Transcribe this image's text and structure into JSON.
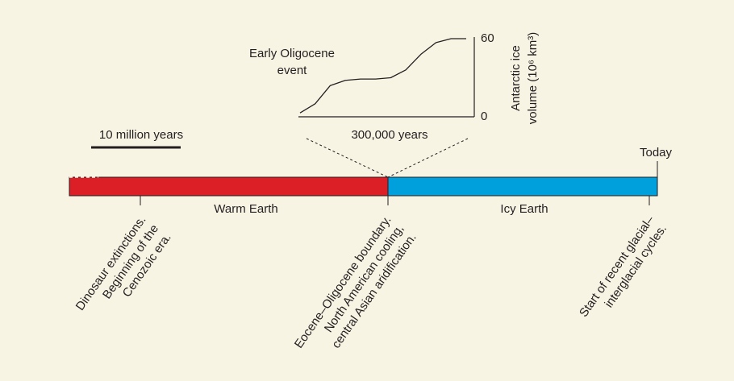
{
  "chart_data": {
    "type": "line",
    "annotation": [
      "Early Oligocene",
      "event"
    ],
    "xlabel": "300,000 years",
    "ylabel": [
      "Antarctic ice",
      "volume (10⁶ km³)"
    ],
    "categories": [
      null,
      null,
      null,
      null,
      null,
      null,
      null,
      null,
      null,
      null,
      null,
      null
    ],
    "values": [
      3,
      10,
      24,
      28,
      29,
      29,
      30,
      36,
      48,
      57,
      60,
      60
    ],
    "ylim": [
      0,
      60
    ],
    "yticks": [
      0,
      60
    ],
    "color": "#231f20"
  },
  "scale_bar": "10 million years",
  "timeline": {
    "end_label": "Today",
    "segments": [
      {
        "label": "Warm Earth",
        "color": "#dc1e26"
      },
      {
        "label": "Icy Earth",
        "color": "#00a0dc"
      }
    ],
    "events": [
      {
        "lines": [
          "Dinosaur extinctions.",
          "Beginning of the",
          "Cenozoic era."
        ]
      },
      {
        "lines": [
          "Eocene–Oligocene boundary.",
          "North American cooling,",
          "central Asian aridification."
        ]
      },
      {
        "lines": [
          "Start of recent glacial–",
          "interglacial cycles."
        ]
      }
    ]
  }
}
